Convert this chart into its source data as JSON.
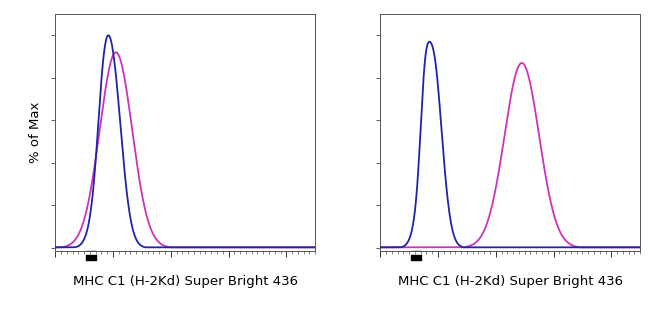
{
  "xlabel": "MHC C1 (H-2Kd) Super Bright 436",
  "ylabel": "% of Max",
  "blue_color": "#2222aa",
  "pink_color": "#cc33bb",
  "background_color": "#ffffff",
  "panel1": {
    "blue_components": [
      {
        "mean": 0.95,
        "std": 0.18,
        "amp": 1.0
      },
      {
        "mean": 0.82,
        "std": 0.09,
        "amp": 0.14
      }
    ],
    "pink_components": [
      {
        "mean": 1.05,
        "std": 0.28,
        "amp": 0.92
      }
    ]
  },
  "panel2": {
    "blue_components": [
      {
        "mean": 0.9,
        "std": 0.16,
        "amp": 0.97
      },
      {
        "mean": 0.76,
        "std": 0.07,
        "amp": 0.22
      }
    ],
    "pink_components": [
      {
        "mean": 2.45,
        "std": 0.3,
        "amp": 0.87
      }
    ]
  },
  "xlim": [
    0.0,
    4.5
  ],
  "ylim": [
    -0.015,
    1.1
  ],
  "xlabel_fontsize": 9.5,
  "ylabel_fontsize": 9.5,
  "linewidth": 1.3
}
